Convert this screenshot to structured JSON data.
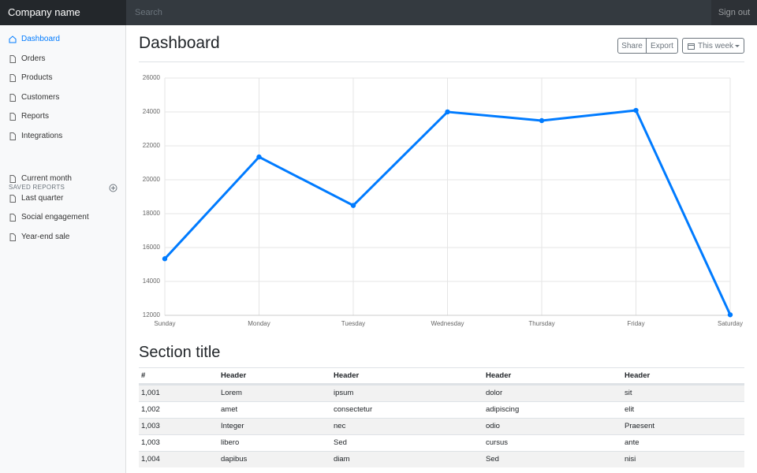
{
  "navbar": {
    "brand": "Company name",
    "search_placeholder": "Search",
    "sign_out": "Sign out"
  },
  "sidebar": {
    "items": [
      "Dashboard",
      "Orders",
      "Products",
      "Customers",
      "Reports",
      "Integrations"
    ],
    "saved_reports_heading": "SAVED REPORTS",
    "saved_reports": [
      "Current month",
      "Last quarter",
      "Social engagement",
      "Year-end sale"
    ]
  },
  "header": {
    "title": "Dashboard",
    "buttons": [
      "Share",
      "Export"
    ],
    "period": "This week"
  },
  "chart_data": {
    "type": "line",
    "categories": [
      "Sunday",
      "Monday",
      "Tuesday",
      "Wednesday",
      "Thursday",
      "Friday",
      "Saturday"
    ],
    "values": [
      15339,
      21345,
      18483,
      24003,
      23489,
      24092,
      12034
    ],
    "color": "#007bff",
    "ylim": [
      12000,
      26000
    ],
    "yticks": [
      12000,
      14000,
      16000,
      18000,
      20000,
      22000,
      24000,
      26000
    ],
    "grid": true
  },
  "section_title": "Section title",
  "table": {
    "columns": [
      "#",
      "Header",
      "Header",
      "Header",
      "Header"
    ],
    "rows": [
      [
        "1,001",
        "Lorem",
        "ipsum",
        "dolor",
        "sit"
      ],
      [
        "1,002",
        "amet",
        "consectetur",
        "adipiscing",
        "elit"
      ],
      [
        "1,003",
        "Integer",
        "nec",
        "odio",
        "Praesent"
      ],
      [
        "1,003",
        "libero",
        "Sed",
        "cursus",
        "ante"
      ],
      [
        "1,004",
        "dapibus",
        "diam",
        "Sed",
        "nisi"
      ]
    ]
  }
}
